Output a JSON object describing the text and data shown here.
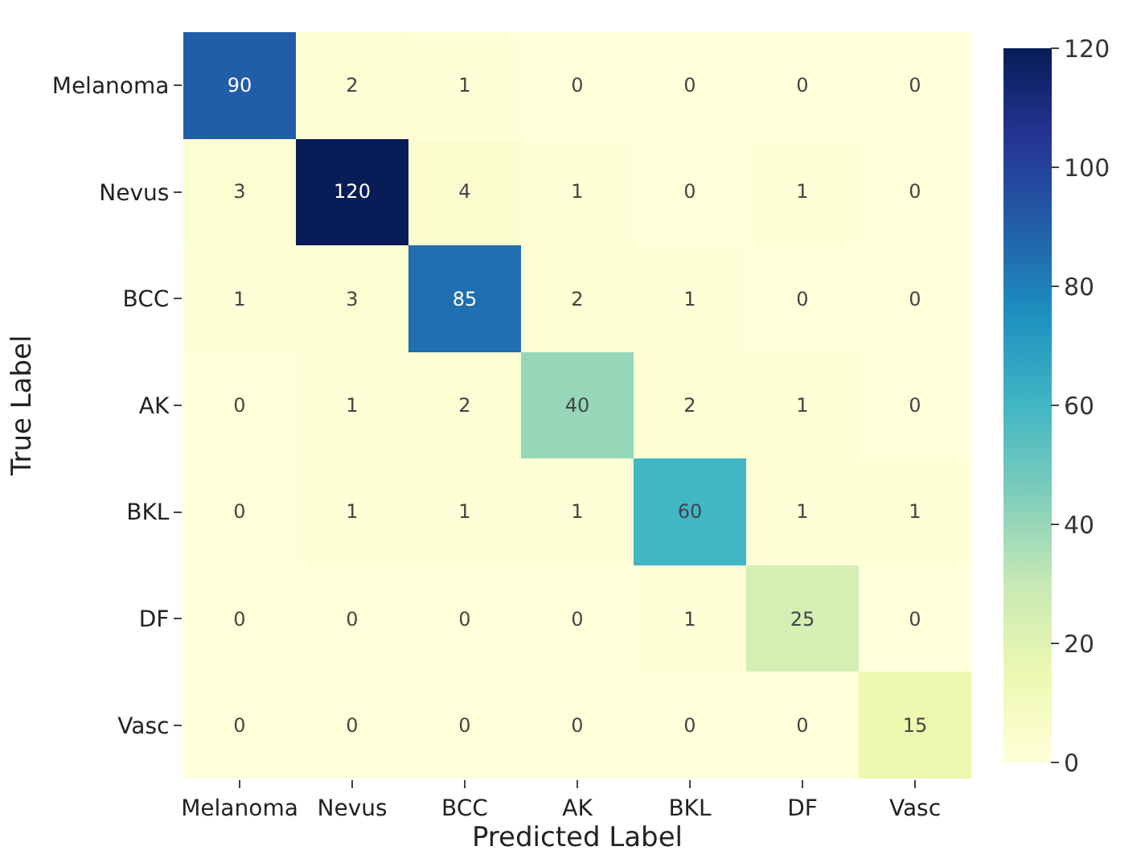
{
  "chart_data": {
    "type": "heatmap",
    "xlabel": "Predicted Label",
    "ylabel": "True Label",
    "categories": [
      "Melanoma",
      "Nevus",
      "BCC",
      "AK",
      "BKL",
      "DF",
      "Vasc"
    ],
    "y_categories": [
      "Melanoma",
      "Nevus",
      "BCC",
      "AK",
      "BKL",
      "DF",
      "Vasc"
    ],
    "cells": [
      [
        90,
        2,
        1,
        0,
        0,
        0,
        0
      ],
      [
        3,
        120,
        4,
        1,
        0,
        1,
        0
      ],
      [
        1,
        3,
        85,
        2,
        1,
        0,
        0
      ],
      [
        0,
        1,
        2,
        40,
        2,
        1,
        0
      ],
      [
        0,
        1,
        1,
        1,
        60,
        1,
        1
      ],
      [
        0,
        0,
        0,
        0,
        1,
        25,
        0
      ],
      [
        0,
        0,
        0,
        0,
        0,
        0,
        15
      ]
    ],
    "data_labels": true,
    "clim": [
      0,
      120
    ],
    "cticks": [
      0,
      20,
      40,
      60,
      80,
      100,
      120
    ]
  }
}
